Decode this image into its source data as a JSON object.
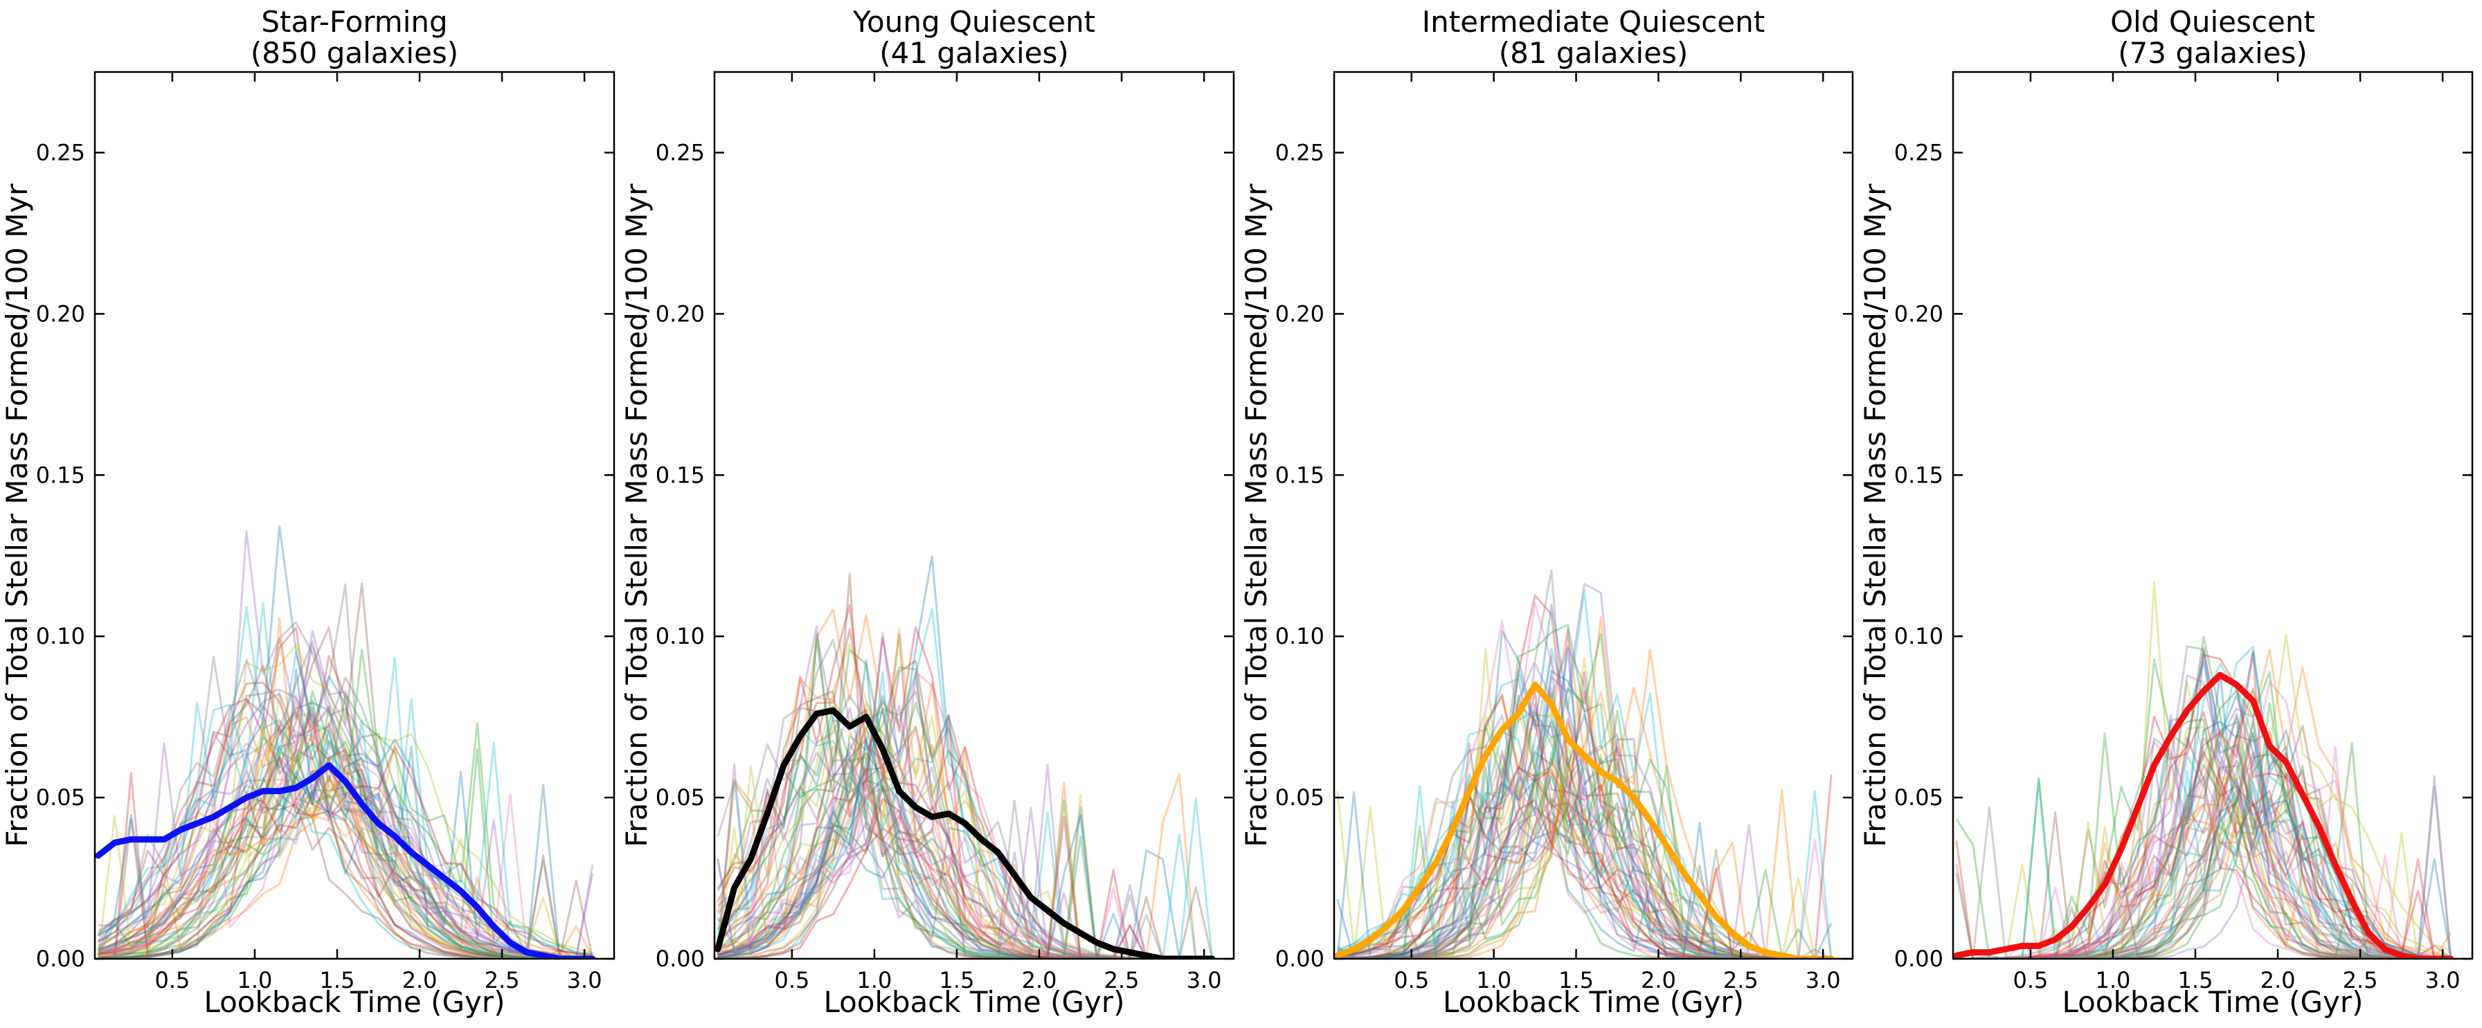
{
  "chart_data": [
    {
      "type": "line",
      "title_line1": "Star-Forming",
      "title_line2": "(850 galaxies)",
      "xlabel": "Lookback Time (Gyr)",
      "ylabel": "Fraction of Total Stellar Mass Formed/100 Myr",
      "xlim": [
        0.03,
        3.18
      ],
      "ylim": [
        0.0,
        0.275
      ],
      "x_ticks": [
        0.5,
        1.0,
        1.5,
        2.0,
        2.5,
        3.0
      ],
      "x_tick_labels": [
        "0.5",
        "1.0",
        "1.5",
        "2.0",
        "2.5",
        "3.0"
      ],
      "y_ticks": [
        0.0,
        0.05,
        0.1,
        0.15,
        0.2,
        0.25
      ],
      "y_tick_labels": [
        "0.00",
        "0.05",
        "0.10",
        "0.15",
        "0.20",
        "0.25"
      ],
      "median_color": "#0a12f5",
      "median": {
        "name": "median",
        "x": [
          0.05,
          0.15,
          0.25,
          0.35,
          0.45,
          0.55,
          0.65,
          0.75,
          0.85,
          0.95,
          1.05,
          1.15,
          1.25,
          1.35,
          1.45,
          1.55,
          1.65,
          1.75,
          1.85,
          1.95,
          2.05,
          2.15,
          2.25,
          2.35,
          2.45,
          2.55,
          2.65,
          2.75,
          2.85,
          2.95,
          3.05
        ],
        "values": [
          0.032,
          0.036,
          0.037,
          0.037,
          0.037,
          0.04,
          0.042,
          0.044,
          0.047,
          0.05,
          0.052,
          0.052,
          0.053,
          0.056,
          0.06,
          0.055,
          0.048,
          0.042,
          0.038,
          0.033,
          0.029,
          0.025,
          0.021,
          0.016,
          0.01,
          0.005,
          0.002,
          0.001,
          0.0,
          0.0,
          0.0
        ]
      },
      "individual_profile": {
        "center": 1.3,
        "width": 0.65,
        "seed": 11,
        "jitter": 0.22
      }
    },
    {
      "type": "line",
      "title_line1": "Young Quiescent",
      "title_line2": "(41 galaxies)",
      "xlabel": "Lookback Time (Gyr)",
      "ylabel": "Fraction of Total Stellar Mass Formed/100 Myr",
      "xlim": [
        0.03,
        3.18
      ],
      "ylim": [
        0.0,
        0.275
      ],
      "x_ticks": [
        0.5,
        1.0,
        1.5,
        2.0,
        2.5,
        3.0
      ],
      "x_tick_labels": [
        "0.5",
        "1.0",
        "1.5",
        "2.0",
        "2.5",
        "3.0"
      ],
      "y_ticks": [
        0.0,
        0.05,
        0.1,
        0.15,
        0.2,
        0.25
      ],
      "y_tick_labels": [
        "0.00",
        "0.05",
        "0.10",
        "0.15",
        "0.20",
        "0.25"
      ],
      "median_color": "#000000",
      "median": {
        "name": "median",
        "x": [
          0.05,
          0.15,
          0.25,
          0.35,
          0.45,
          0.55,
          0.65,
          0.75,
          0.85,
          0.95,
          1.05,
          1.15,
          1.25,
          1.35,
          1.45,
          1.55,
          1.65,
          1.75,
          1.85,
          1.95,
          2.05,
          2.15,
          2.25,
          2.35,
          2.45,
          2.55,
          2.65,
          2.75,
          2.85,
          2.95,
          3.05
        ],
        "values": [
          0.003,
          0.022,
          0.031,
          0.045,
          0.06,
          0.069,
          0.076,
          0.077,
          0.072,
          0.075,
          0.065,
          0.052,
          0.047,
          0.044,
          0.045,
          0.042,
          0.037,
          0.033,
          0.026,
          0.019,
          0.015,
          0.011,
          0.008,
          0.005,
          0.003,
          0.002,
          0.001,
          0.0,
          0.0,
          0.0,
          0.0
        ]
      },
      "individual_profile": {
        "center": 0.95,
        "width": 0.5,
        "seed": 23,
        "jitter": 0.3
      }
    },
    {
      "type": "line",
      "title_line1": "Intermediate Quiescent",
      "title_line2": "(81 galaxies)",
      "xlabel": "Lookback Time (Gyr)",
      "ylabel": "Fraction of Total Stellar Mass Formed/100 Myr",
      "xlim": [
        0.03,
        3.18
      ],
      "ylim": [
        0.0,
        0.275
      ],
      "x_ticks": [
        0.5,
        1.0,
        1.5,
        2.0,
        2.5,
        3.0
      ],
      "x_tick_labels": [
        "0.5",
        "1.0",
        "1.5",
        "2.0",
        "2.5",
        "3.0"
      ],
      "y_ticks": [
        0.0,
        0.05,
        0.1,
        0.15,
        0.2,
        0.25
      ],
      "y_tick_labels": [
        "0.00",
        "0.05",
        "0.10",
        "0.15",
        "0.20",
        "0.25"
      ],
      "median_color": "#ffa500",
      "median": {
        "name": "median",
        "x": [
          0.05,
          0.15,
          0.25,
          0.35,
          0.45,
          0.55,
          0.65,
          0.75,
          0.85,
          0.95,
          1.05,
          1.15,
          1.25,
          1.35,
          1.45,
          1.55,
          1.65,
          1.75,
          1.85,
          1.95,
          2.05,
          2.15,
          2.25,
          2.35,
          2.45,
          2.55,
          2.65,
          2.75,
          2.85,
          2.95,
          3.05
        ],
        "values": [
          0.001,
          0.003,
          0.006,
          0.01,
          0.015,
          0.022,
          0.03,
          0.04,
          0.052,
          0.063,
          0.071,
          0.076,
          0.085,
          0.079,
          0.068,
          0.063,
          0.058,
          0.055,
          0.05,
          0.043,
          0.035,
          0.027,
          0.02,
          0.013,
          0.008,
          0.004,
          0.002,
          0.001,
          0.0,
          0.0,
          0.0
        ]
      },
      "individual_profile": {
        "center": 1.4,
        "width": 0.5,
        "seed": 37,
        "jitter": 0.35
      }
    },
    {
      "type": "line",
      "title_line1": "Old Quiescent",
      "title_line2": "(73 galaxies)",
      "xlabel": "Lookback Time (Gyr)",
      "ylabel": "Fraction of Total Stellar Mass Formed/100 Myr",
      "xlim": [
        0.03,
        3.18
      ],
      "ylim": [
        0.0,
        0.275
      ],
      "x_ticks": [
        0.5,
        1.0,
        1.5,
        2.0,
        2.5,
        3.0
      ],
      "x_tick_labels": [
        "0.5",
        "1.0",
        "1.5",
        "2.0",
        "2.5",
        "3.0"
      ],
      "y_ticks": [
        0.0,
        0.05,
        0.1,
        0.15,
        0.2,
        0.25
      ],
      "y_tick_labels": [
        "0.00",
        "0.05",
        "0.10",
        "0.15",
        "0.20",
        "0.25"
      ],
      "median_color": "#f01010",
      "median": {
        "name": "median",
        "x": [
          0.05,
          0.15,
          0.25,
          0.35,
          0.45,
          0.55,
          0.65,
          0.75,
          0.85,
          0.95,
          1.05,
          1.15,
          1.25,
          1.35,
          1.45,
          1.55,
          1.65,
          1.75,
          1.85,
          1.95,
          2.05,
          2.15,
          2.25,
          2.35,
          2.45,
          2.55,
          2.65,
          2.75,
          2.85,
          2.95,
          3.05
        ],
        "values": [
          0.001,
          0.002,
          0.002,
          0.003,
          0.004,
          0.004,
          0.006,
          0.01,
          0.016,
          0.023,
          0.034,
          0.047,
          0.06,
          0.069,
          0.077,
          0.083,
          0.088,
          0.085,
          0.08,
          0.066,
          0.061,
          0.051,
          0.041,
          0.029,
          0.018,
          0.008,
          0.003,
          0.001,
          0.0,
          0.0,
          0.0
        ]
      },
      "individual_profile": {
        "center": 1.75,
        "width": 0.42,
        "seed": 53,
        "jitter": 0.35
      }
    }
  ],
  "palette": [
    "#1f77b4",
    "#ff7f0e",
    "#2ca02c",
    "#d62728",
    "#9467bd",
    "#8c564b",
    "#e377c2",
    "#7f7f7f",
    "#bcbd22",
    "#17becf"
  ]
}
